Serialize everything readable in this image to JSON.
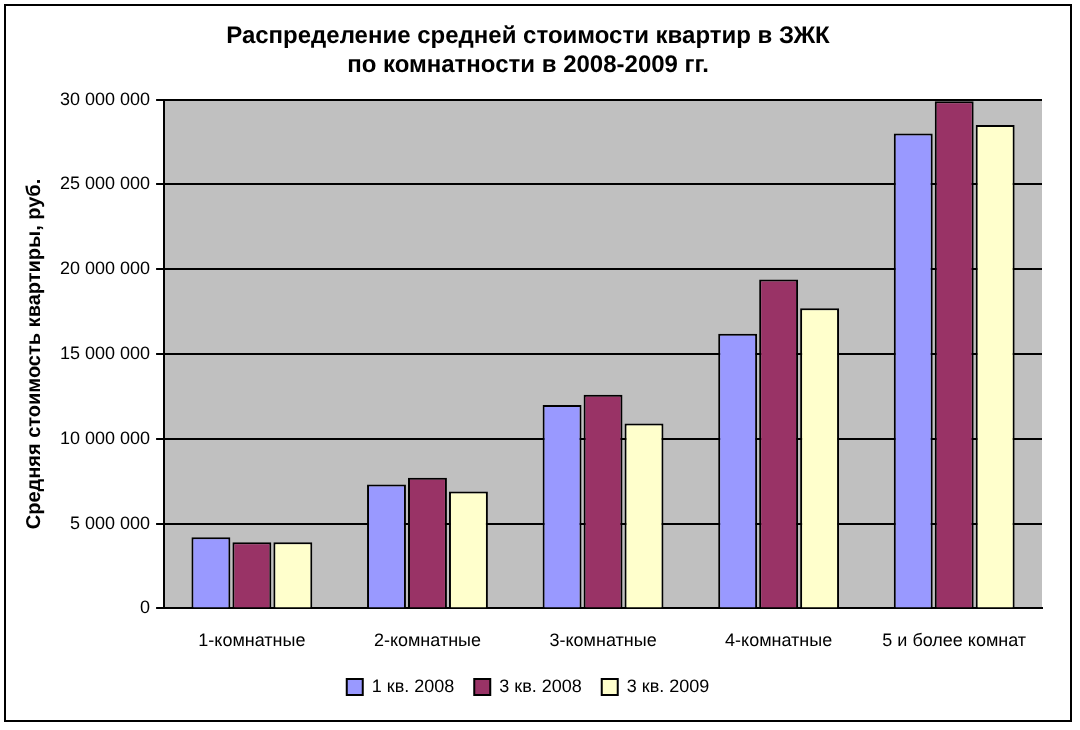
{
  "chart_data": {
    "type": "bar",
    "title": [
      "Распределение средней стоимости квартир в ЗЖК",
      "по комнатности в 2008-2009 гг."
    ],
    "ylabel": "Средняя стоимость квартиры, руб.",
    "categories": [
      "1-комнатные",
      "2-комнатные",
      "3-комнатные",
      "4-комнатные",
      "5 и более комнат"
    ],
    "series": [
      {
        "name": "1 кв. 2008",
        "color": "#9999ff",
        "values": [
          4200000,
          7300000,
          12000000,
          16200000,
          28000000
        ]
      },
      {
        "name": "3 кв. 2008",
        "color": "#993366",
        "values": [
          3900000,
          7700000,
          12600000,
          19400000,
          29900000
        ]
      },
      {
        "name": "3 кв. 2009",
        "color": "#ffffcc",
        "values": [
          3900000,
          6900000,
          10900000,
          17700000,
          28500000
        ]
      }
    ],
    "ylim": [
      0,
      30000000
    ],
    "yticks": [
      {
        "value": 0,
        "label": "0"
      },
      {
        "value": 5000000,
        "label": "5 000 000"
      },
      {
        "value": 10000000,
        "label": "10 000 000"
      },
      {
        "value": 15000000,
        "label": "15 000 000"
      },
      {
        "value": 20000000,
        "label": "20 000 000"
      },
      {
        "value": 25000000,
        "label": "25 000 000"
      },
      {
        "value": 30000000,
        "label": "30 000 000"
      }
    ],
    "grid": "y",
    "legend": "bottom"
  }
}
